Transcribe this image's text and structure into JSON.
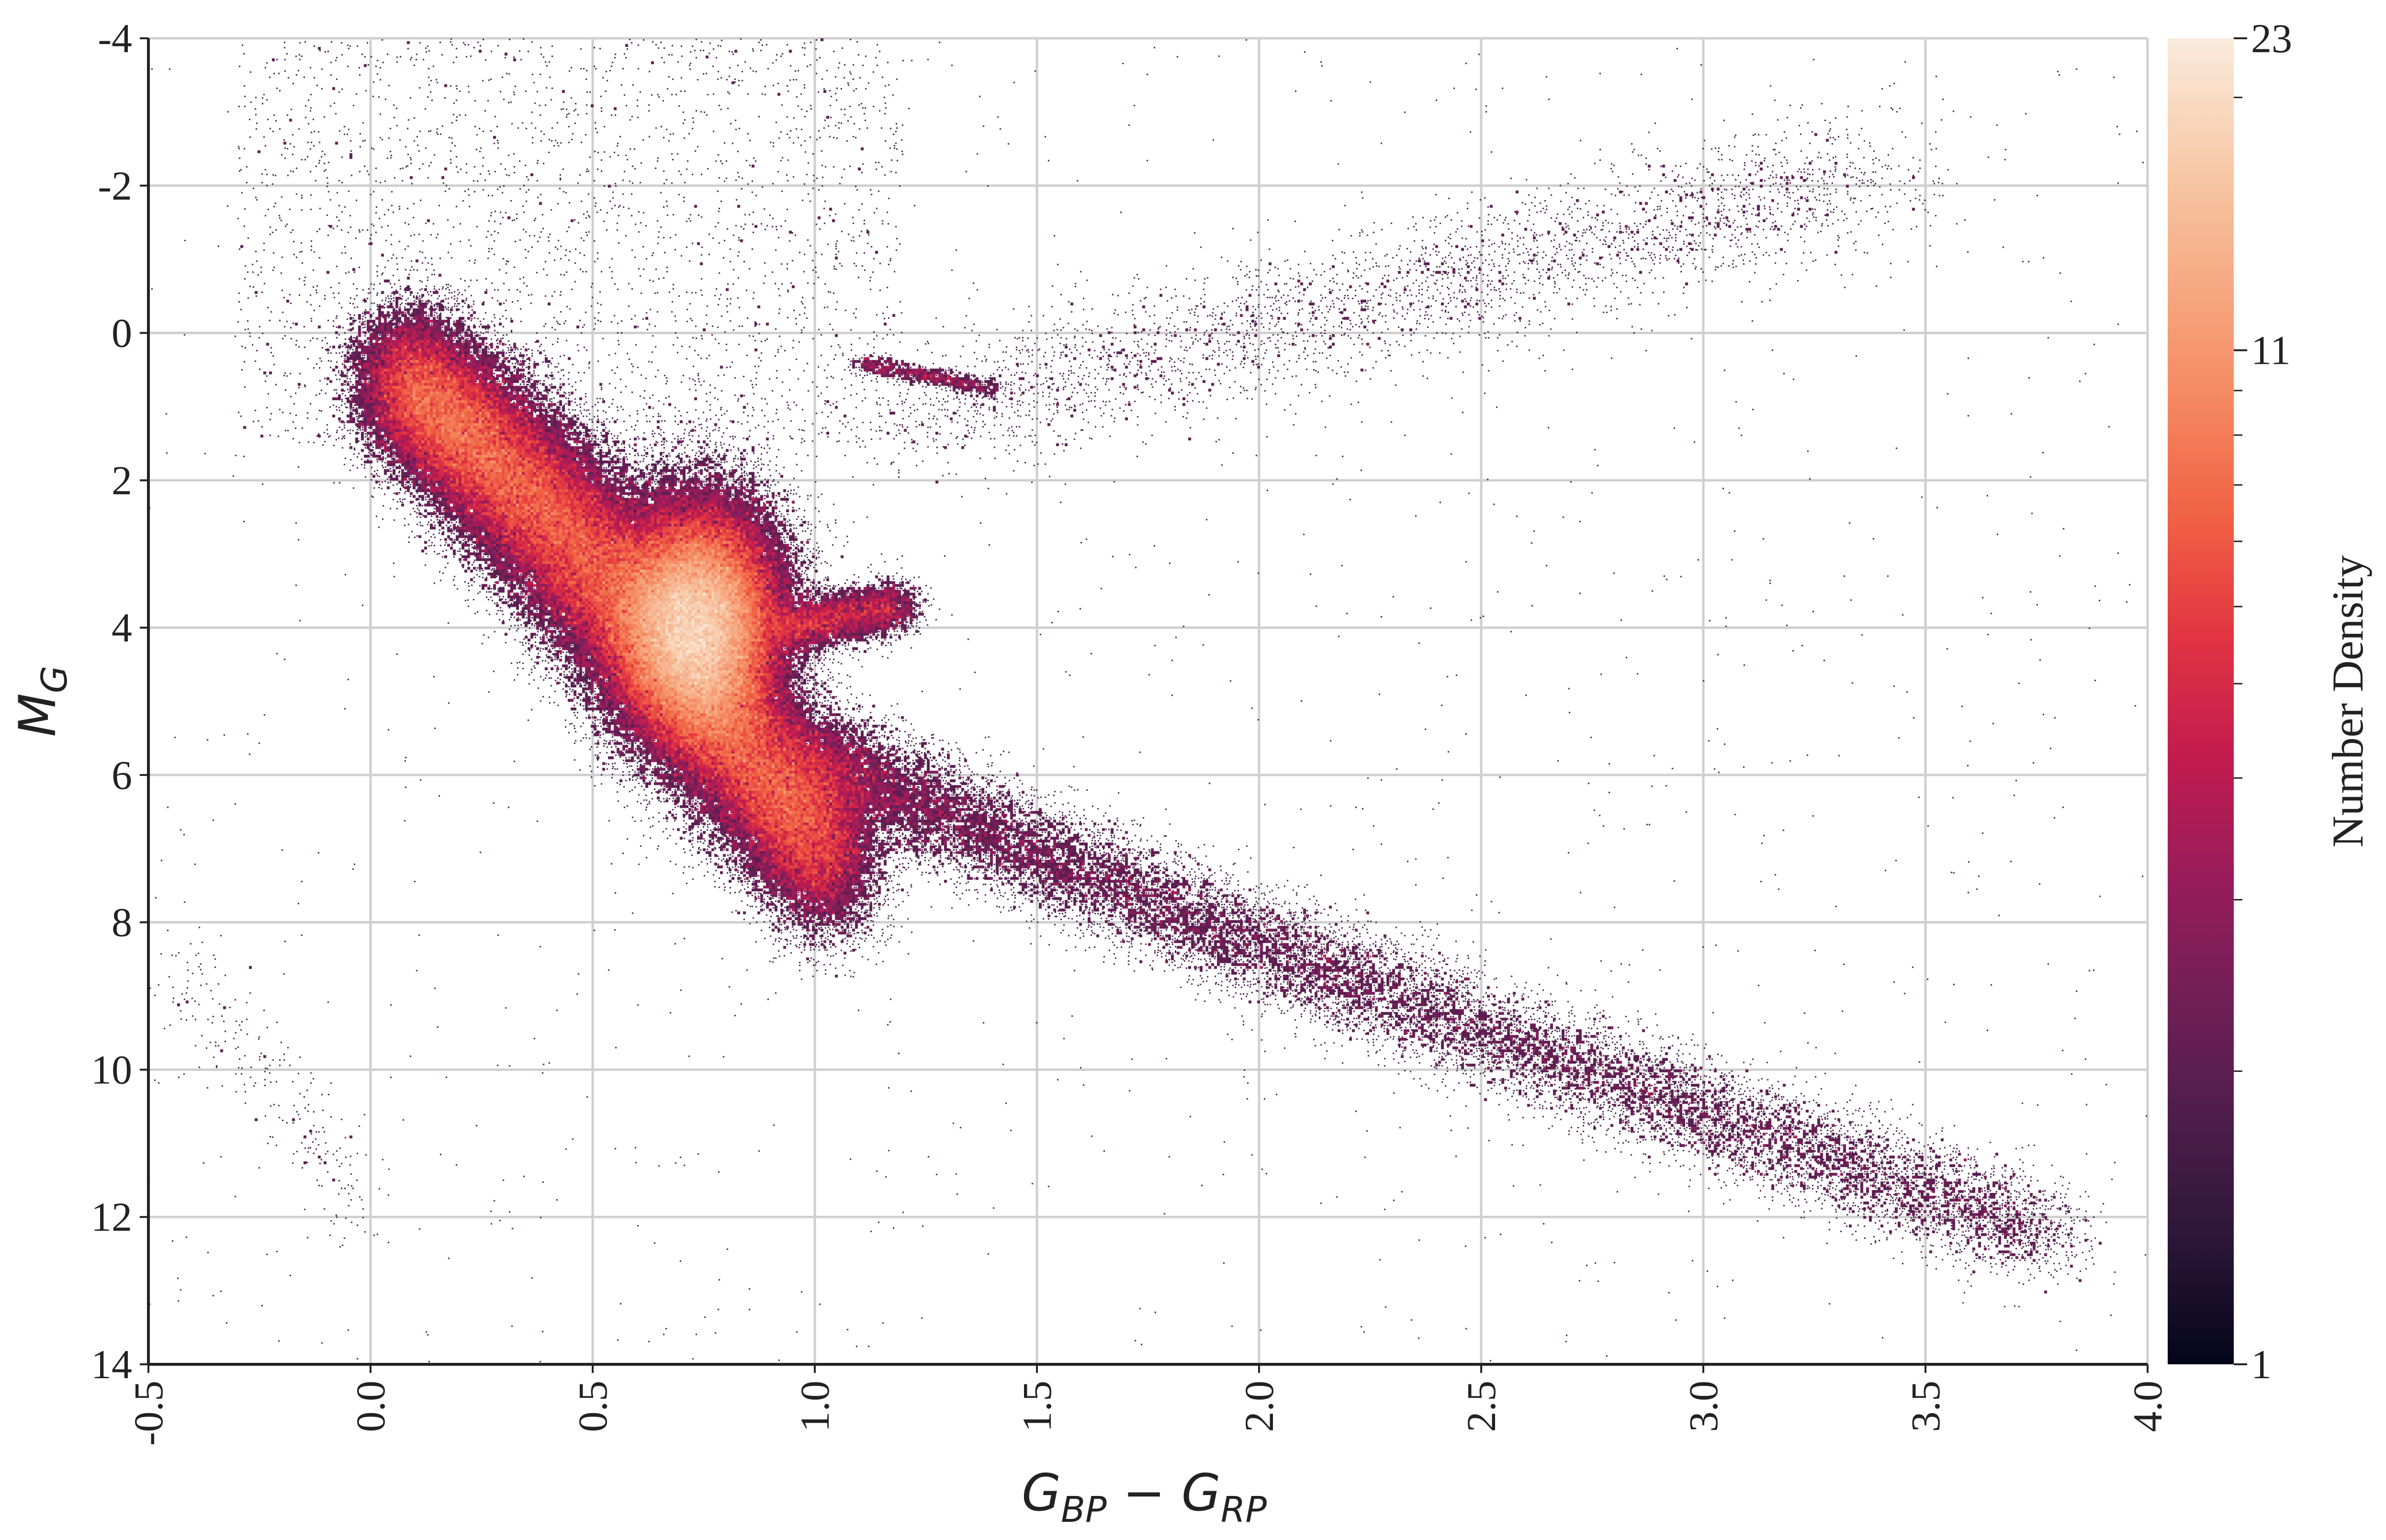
{
  "chart_data": {
    "type": "heatmap",
    "title": "",
    "xlabel": {
      "main": "G",
      "sub1": "BP",
      "minus": " − ",
      "main2": "G",
      "sub2": "RP"
    },
    "ylabel": {
      "main": "M",
      "sub": "G"
    },
    "xlim": [
      -0.5,
      4.0
    ],
    "ylim": [
      14,
      -4
    ],
    "y_inverted": true,
    "grid": true,
    "x_ticks": [
      -0.5,
      0.0,
      0.5,
      1.0,
      1.5,
      2.0,
      2.5,
      3.0,
      3.5,
      4.0
    ],
    "x_tick_labels": [
      "-0.5",
      "0.0",
      "0.5",
      "1.0",
      "1.5",
      "2.0",
      "2.5",
      "3.0",
      "3.5",
      "4.0"
    ],
    "y_ticks": [
      -4,
      -2,
      0,
      2,
      4,
      6,
      8,
      10,
      12,
      14
    ],
    "y_tick_labels": [
      "-4",
      "-2",
      "0",
      "2",
      "4",
      "6",
      "8",
      "10",
      "12",
      "14"
    ],
    "colorbar": {
      "label": "Number Density",
      "scale": "log",
      "min": 1,
      "max": 23,
      "tick_values": [
        1,
        11,
        23
      ],
      "tick_labels": [
        "1",
        "11",
        "23"
      ],
      "minor_tick_values": [
        2,
        3,
        4,
        5,
        6,
        7,
        8,
        9,
        10,
        20
      ],
      "colormap": [
        "#03051a",
        "#2b1637",
        "#4c1d4b",
        "#701f57",
        "#971c5b",
        "#c01b4f",
        "#e13342",
        "#f06043",
        "#f58860",
        "#f6ab84",
        "#f7cbaa",
        "#faebdd"
      ]
    },
    "density_structures": [
      {
        "name": "main sequence upper",
        "x_range": [
          0.0,
          1.1
        ],
        "y_range": [
          0.0,
          6.5
        ],
        "peak_density": 23,
        "peak_at": [
          0.72,
          3.8
        ]
      },
      {
        "name": "main sequence lower",
        "x_range": [
          1.0,
          3.8
        ],
        "y_range": [
          6.0,
          13.8
        ],
        "peak_density": 3
      },
      {
        "name": "subgiant branch",
        "x_range": [
          0.95,
          1.2
        ],
        "y_range": [
          3.6,
          4.3
        ],
        "peak_density": 6
      },
      {
        "name": "red clump",
        "x_range": [
          1.1,
          1.35
        ],
        "y_range": [
          0.3,
          0.9
        ],
        "peak_density": 3
      },
      {
        "name": "red giant branch",
        "x_range": [
          1.2,
          3.5
        ],
        "y_range": [
          -2.4,
          2.0
        ],
        "peak_density": 2
      },
      {
        "name": "white dwarf sequence",
        "x_range": [
          -0.45,
          0.0
        ],
        "y_range": [
          8.5,
          12.0
        ],
        "peak_density": 1
      }
    ]
  }
}
